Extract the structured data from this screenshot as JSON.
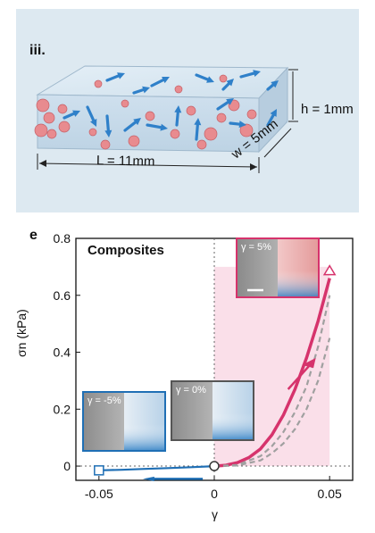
{
  "panel_top": {
    "label": "iii.",
    "dimensions": {
      "length": "L = 11mm",
      "width": "w = 5mm",
      "height": "h = 1mm"
    }
  },
  "panel_bottom": {
    "label": "e",
    "legend_title": "Composites",
    "insets": [
      {
        "strain_label": "γ = 5%"
      },
      {
        "strain_label": "γ = 0%"
      },
      {
        "strain_label": "γ = -5%"
      }
    ]
  },
  "colors": {
    "composite_curve": "#d6336c",
    "pure_curve": "#1f6fb5",
    "dashed_curve": "#a0a0a0",
    "shade": "#f8d4e2",
    "panel_bg": "#dde9f1"
  },
  "chart_data": {
    "type": "line",
    "title": "Composites",
    "xlabel": "γ",
    "ylabel": "σn (kPa)",
    "xlim": [
      -0.06,
      0.06
    ],
    "ylim": [
      -0.05,
      0.8
    ],
    "xticks": [
      "-0.05",
      "0",
      "0.05"
    ],
    "yticks": [
      "0",
      "0.2",
      "0.4",
      "0.6",
      "0.8"
    ],
    "grid": false,
    "series": [
      {
        "style": "solid-pink",
        "x": [
          0,
          0.005,
          0.01,
          0.015,
          0.02,
          0.025,
          0.03,
          0.035,
          0.04,
          0.045,
          0.05
        ],
        "values": [
          0,
          0.003,
          0.012,
          0.03,
          0.06,
          0.11,
          0.18,
          0.27,
          0.38,
          0.51,
          0.66
        ]
      },
      {
        "style": "dashed-gray",
        "x": [
          0,
          0.01,
          0.02,
          0.025,
          0.03,
          0.035,
          0.04,
          0.045,
          0.05
        ],
        "values": [
          0,
          0.002,
          0.02,
          0.045,
          0.08,
          0.13,
          0.2,
          0.3,
          0.45
        ]
      },
      {
        "style": "dashed-gray",
        "x": [
          0,
          0.01,
          0.02,
          0.025,
          0.03,
          0.035,
          0.04,
          0.045,
          0.05
        ],
        "values": [
          0,
          0.004,
          0.035,
          0.07,
          0.12,
          0.19,
          0.28,
          0.42,
          0.6
        ]
      },
      {
        "style": "solid-blue",
        "x": [
          -0.05,
          -0.04,
          -0.03,
          -0.02,
          -0.01,
          0
        ],
        "values": [
          -0.015,
          -0.013,
          -0.01,
          -0.007,
          -0.004,
          0
        ]
      }
    ]
  }
}
